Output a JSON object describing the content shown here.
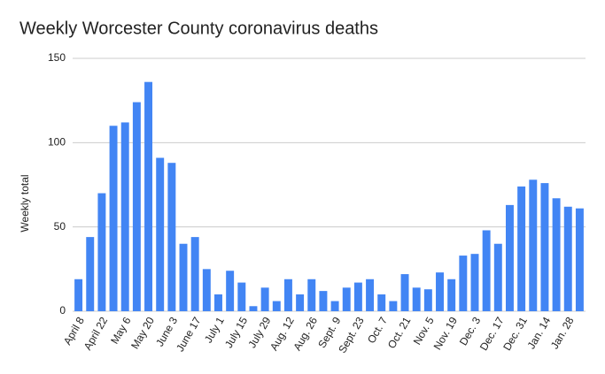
{
  "chart_data": {
    "type": "bar",
    "title": "Weekly Worcester County coronavirus deaths",
    "y_label": "Weekly total",
    "categories": [
      "April 8",
      null,
      "April 22",
      null,
      "May 6",
      null,
      "May 20",
      null,
      "June 3",
      null,
      "June 17",
      null,
      "July 1",
      null,
      "July 15",
      null,
      "July 29",
      null,
      "Aug. 12",
      null,
      "Aug. 26",
      null,
      "Sept. 9",
      null,
      "Sept. 23",
      null,
      "Oct. 7",
      null,
      "Oct. 21",
      null,
      "Nov. 5",
      null,
      "Nov. 19",
      null,
      "Dec. 3",
      null,
      "Dec. 17",
      null,
      "Dec. 31",
      null,
      "Jan. 14",
      null,
      "Jan. 28",
      null
    ],
    "values": [
      19,
      44,
      70,
      110,
      112,
      124,
      136,
      91,
      88,
      40,
      44,
      25,
      10,
      24,
      17,
      3,
      14,
      6,
      19,
      10,
      19,
      12,
      6,
      14,
      17,
      19,
      10,
      6,
      22,
      14,
      13,
      23,
      19,
      33,
      34,
      48,
      40,
      63,
      74,
      78,
      76,
      67,
      62,
      61
    ],
    "color": "#4285f4",
    "ylim": [
      0,
      150
    ],
    "yticks": [
      0,
      50,
      100,
      150
    ],
    "grid": true
  }
}
